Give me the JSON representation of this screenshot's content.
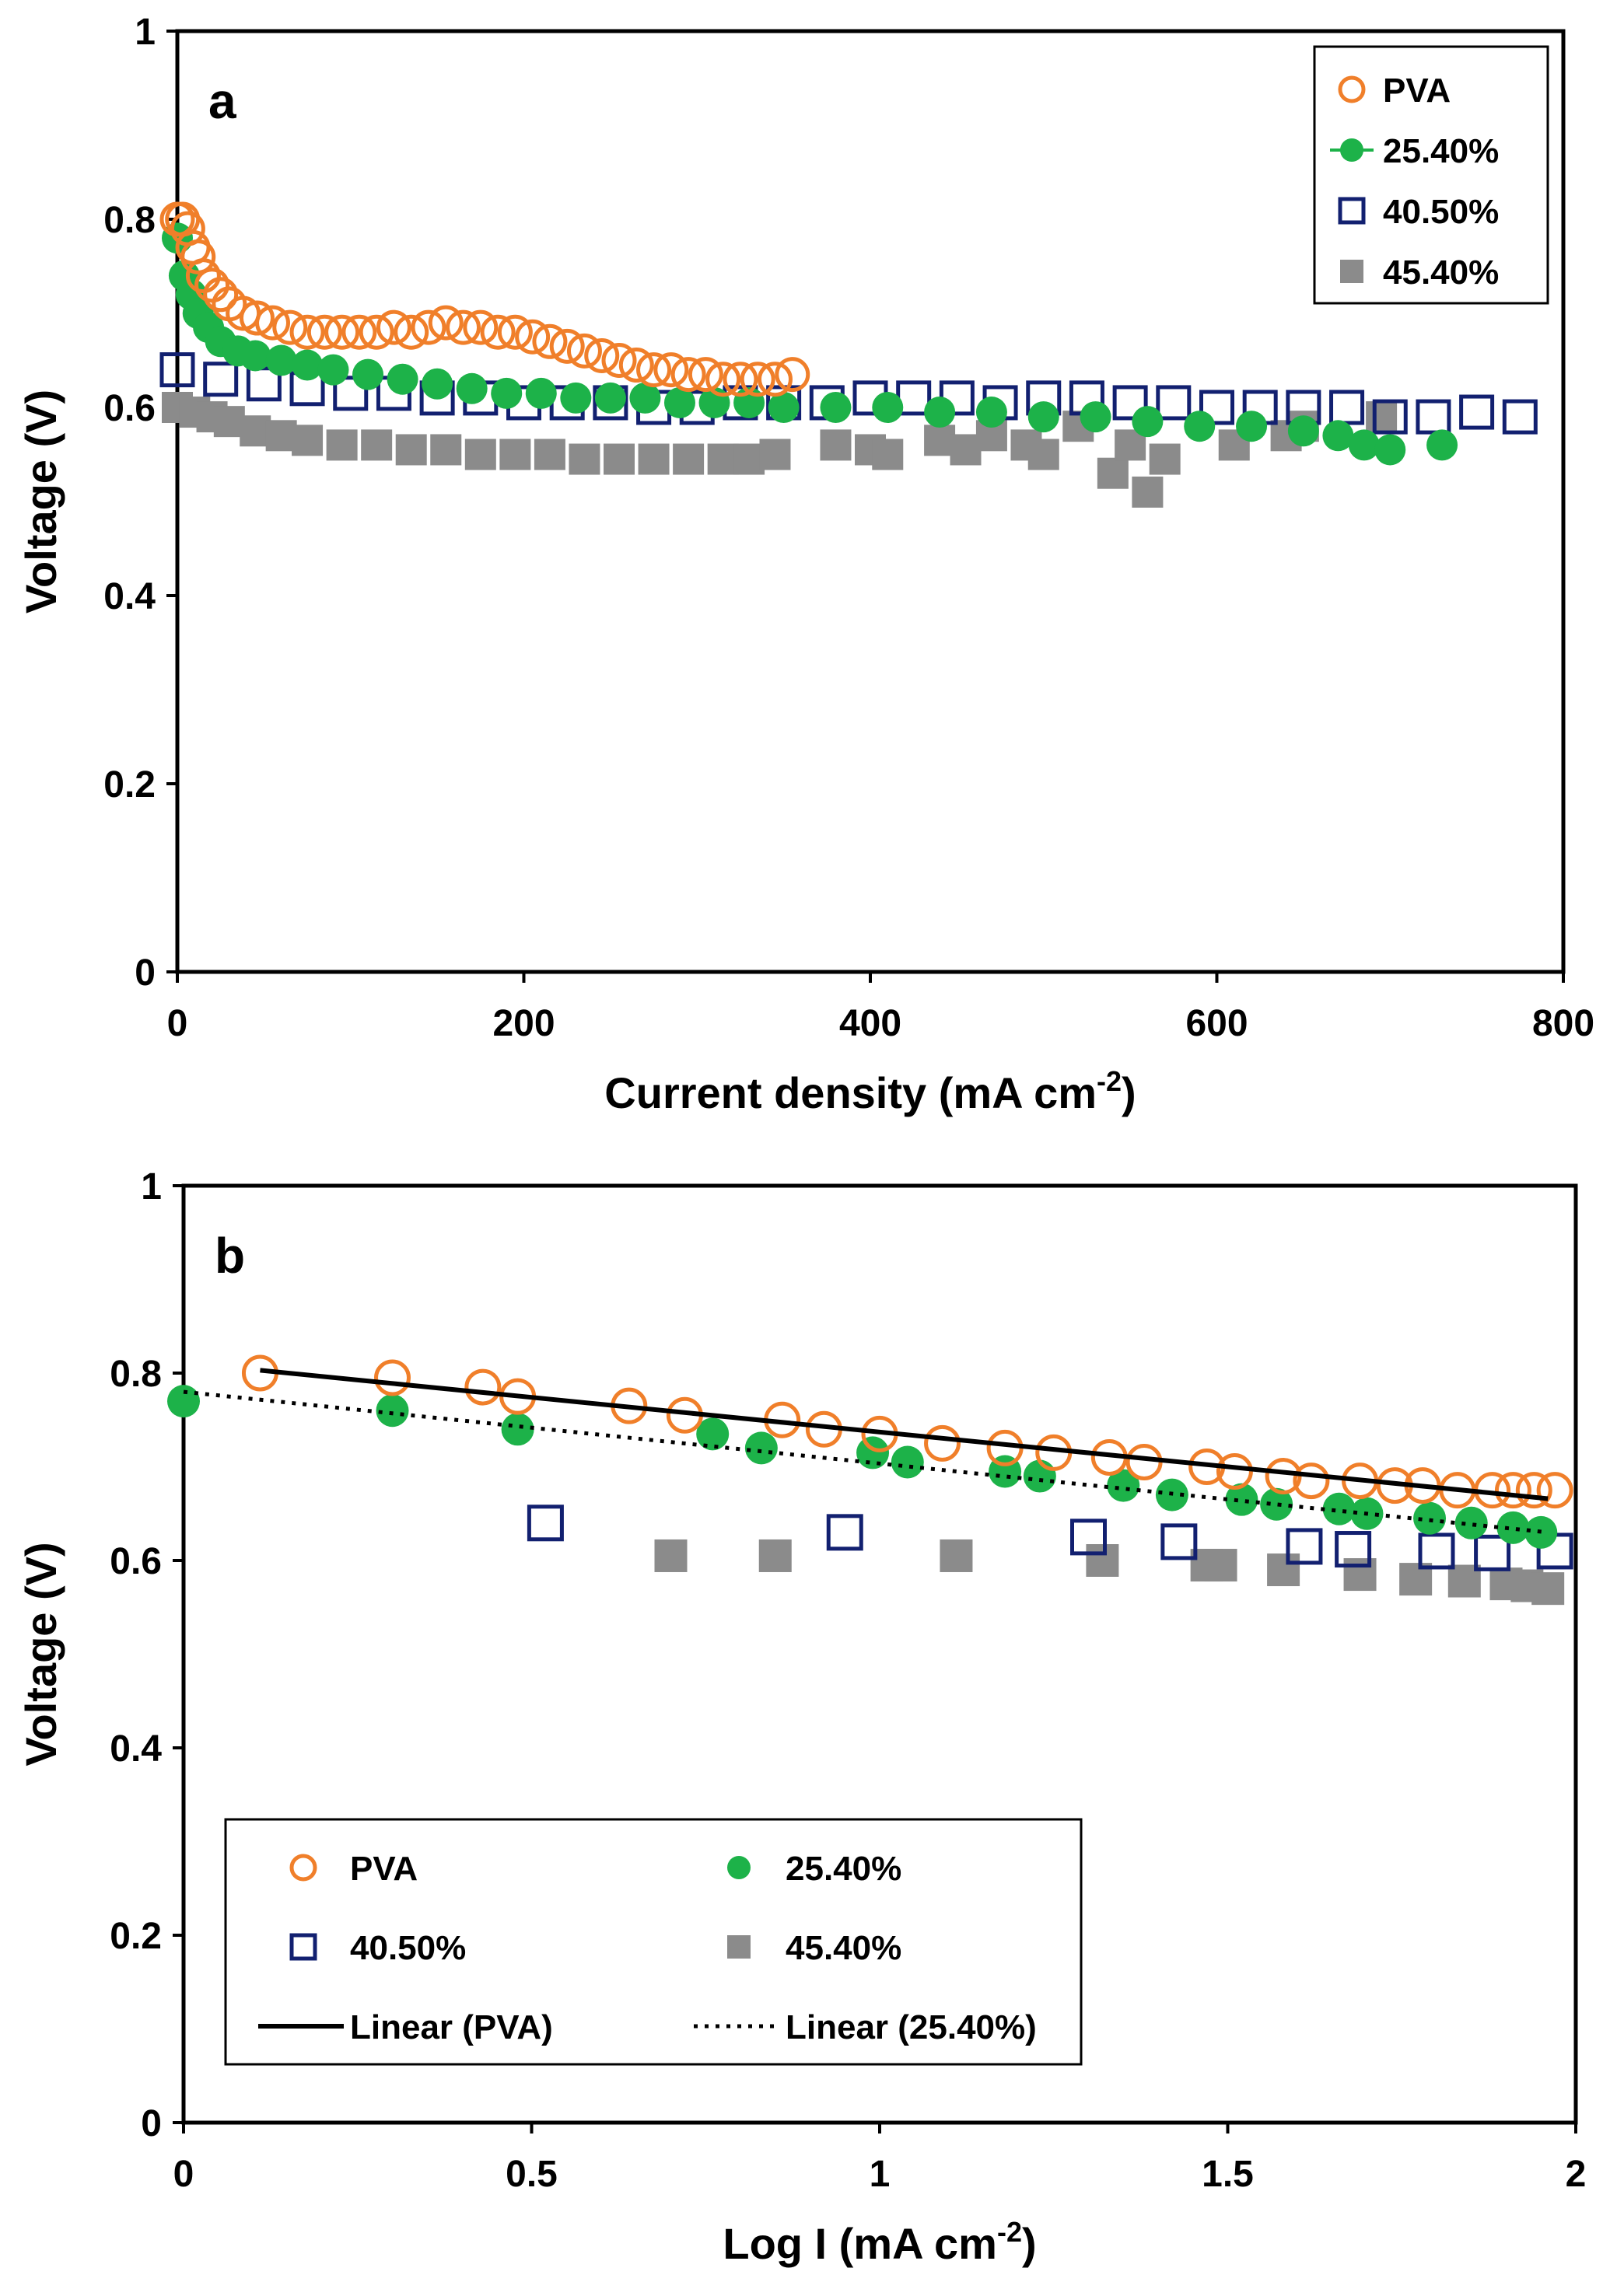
{
  "colors": {
    "pva": "#f07f2a",
    "s2540": "#1db249",
    "s4050": "#122070",
    "s4540": "#8b8b8b",
    "fit": "#000000"
  },
  "chart_data": [
    {
      "type": "scatter",
      "panel_label": "a",
      "xlabel": "Current density (mA cm",
      "xlabel_sup": "-2",
      "xlabel_end": ")",
      "ylabel": "Voltage (V)",
      "xlim": [
        0,
        800
      ],
      "ylim": [
        0,
        1
      ],
      "xticks": [
        "0",
        "200",
        "400",
        "600",
        "800"
      ],
      "yticks": [
        "0",
        "0.2",
        "0.4",
        "0.6",
        "0.8",
        "1"
      ],
      "legend_position": "top-right",
      "series": [
        {
          "name": "PVA",
          "marker": "open-circle",
          "color": "pva",
          "x": [
            0,
            3,
            6,
            9,
            12,
            15,
            20,
            25,
            30,
            38,
            46,
            55,
            65,
            75,
            85,
            95,
            105,
            115,
            125,
            135,
            145,
            155,
            165,
            175,
            185,
            195,
            205,
            215,
            225,
            235,
            245,
            255,
            265,
            275,
            285,
            295,
            305,
            315,
            325,
            335,
            345,
            355
          ],
          "y": [
            0.8,
            0.8,
            0.79,
            0.77,
            0.76,
            0.74,
            0.73,
            0.72,
            0.71,
            0.7,
            0.695,
            0.69,
            0.685,
            0.68,
            0.68,
            0.68,
            0.68,
            0.68,
            0.685,
            0.68,
            0.685,
            0.69,
            0.685,
            0.685,
            0.68,
            0.68,
            0.675,
            0.67,
            0.665,
            0.66,
            0.655,
            0.65,
            0.645,
            0.64,
            0.64,
            0.635,
            0.635,
            0.63,
            0.63,
            0.63,
            0.63,
            0.635
          ]
        },
        {
          "name": "25.40%",
          "marker": "filled-circle",
          "color": "s2540",
          "x": [
            0,
            4,
            8,
            12,
            18,
            25,
            35,
            45,
            60,
            75,
            90,
            110,
            130,
            150,
            170,
            190,
            210,
            230,
            250,
            270,
            290,
            310,
            330,
            350,
            380,
            410,
            440,
            470,
            500,
            530,
            560,
            590,
            620,
            650,
            670,
            685,
            700,
            730
          ],
          "y": [
            0.78,
            0.74,
            0.72,
            0.7,
            0.685,
            0.67,
            0.66,
            0.655,
            0.65,
            0.645,
            0.64,
            0.635,
            0.63,
            0.625,
            0.62,
            0.615,
            0.615,
            0.61,
            0.61,
            0.61,
            0.605,
            0.605,
            0.605,
            0.6,
            0.6,
            0.6,
            0.595,
            0.595,
            0.59,
            0.59,
            0.585,
            0.58,
            0.58,
            0.575,
            0.57,
            0.56,
            0.555,
            0.56
          ]
        },
        {
          "name": "40.50%",
          "marker": "open-square",
          "color": "s4050",
          "x": [
            0,
            25,
            50,
            75,
            100,
            125,
            150,
            175,
            200,
            225,
            250,
            275,
            300,
            325,
            350,
            375,
            400,
            425,
            450,
            475,
            500,
            525,
            550,
            575,
            600,
            625,
            650,
            675,
            700,
            725,
            750,
            775
          ],
          "y": [
            0.64,
            0.63,
            0.625,
            0.62,
            0.615,
            0.615,
            0.61,
            0.61,
            0.605,
            0.605,
            0.605,
            0.6,
            0.6,
            0.605,
            0.605,
            0.605,
            0.61,
            0.61,
            0.61,
            0.605,
            0.61,
            0.61,
            0.605,
            0.605,
            0.6,
            0.6,
            0.6,
            0.6,
            0.59,
            0.59,
            0.595,
            0.59
          ]
        },
        {
          "name": "45.40%",
          "marker": "filled-square",
          "color": "s4540",
          "x": [
            0,
            10,
            20,
            30,
            45,
            60,
            75,
            95,
            115,
            135,
            155,
            175,
            195,
            215,
            235,
            255,
            275,
            295,
            315,
            330,
            345,
            380,
            400,
            410,
            440,
            455,
            470,
            490,
            500,
            520,
            540,
            550,
            560,
            570,
            610,
            640,
            650,
            695
          ],
          "y": [
            0.6,
            0.595,
            0.59,
            0.585,
            0.575,
            0.57,
            0.565,
            0.56,
            0.56,
            0.555,
            0.555,
            0.55,
            0.55,
            0.55,
            0.545,
            0.545,
            0.545,
            0.545,
            0.545,
            0.545,
            0.55,
            0.56,
            0.555,
            0.55,
            0.565,
            0.555,
            0.57,
            0.56,
            0.55,
            0.58,
            0.53,
            0.56,
            0.51,
            0.545,
            0.56,
            0.57,
            0.58,
            0.59
          ]
        }
      ]
    },
    {
      "type": "scatter",
      "panel_label": "b",
      "xlabel": "Log I (mA cm",
      "xlabel_sup": "-2",
      "xlabel_end": ")",
      "ylabel": "Voltage (V)",
      "xlim": [
        0,
        2
      ],
      "ylim": [
        0,
        1
      ],
      "xticks": [
        "0",
        "0.5",
        "1",
        "1.5",
        "2"
      ],
      "yticks": [
        "0",
        "0.2",
        "0.4",
        "0.6",
        "0.8",
        "1"
      ],
      "legend_position": "bottom-left",
      "series": [
        {
          "name": "PVA",
          "marker": "open-circle",
          "color": "pva",
          "x": [
            0.11,
            0.3,
            0.43,
            0.48,
            0.64,
            0.72,
            0.86,
            0.92,
            1.0,
            1.09,
            1.18,
            1.25,
            1.33,
            1.38,
            1.47,
            1.51,
            1.58,
            1.62,
            1.69,
            1.74,
            1.78,
            1.83,
            1.88,
            1.91,
            1.94,
            1.97
          ],
          "y": [
            0.8,
            0.795,
            0.785,
            0.775,
            0.765,
            0.755,
            0.75,
            0.74,
            0.735,
            0.725,
            0.72,
            0.715,
            0.71,
            0.705,
            0.7,
            0.695,
            0.69,
            0.685,
            0.685,
            0.68,
            0.68,
            0.675,
            0.675,
            0.675,
            0.675,
            0.675
          ]
        },
        {
          "name": "25.40%",
          "marker": "filled-circle",
          "color": "s2540",
          "x": [
            0.0,
            0.3,
            0.48,
            0.76,
            0.83,
            0.99,
            1.04,
            1.18,
            1.23,
            1.35,
            1.42,
            1.52,
            1.57,
            1.66,
            1.7,
            1.79,
            1.85,
            1.91,
            1.95
          ],
          "y": [
            0.77,
            0.76,
            0.74,
            0.735,
            0.72,
            0.715,
            0.705,
            0.695,
            0.69,
            0.68,
            0.67,
            0.665,
            0.66,
            0.655,
            0.65,
            0.645,
            0.64,
            0.635,
            0.63
          ]
        },
        {
          "name": "40.50%",
          "marker": "open-square",
          "color": "s4050",
          "x": [
            0.52,
            0.95,
            1.3,
            1.43,
            1.61,
            1.68,
            1.8,
            1.88,
            1.97
          ],
          "y": [
            0.64,
            0.63,
            0.625,
            0.62,
            0.615,
            0.612,
            0.61,
            0.608,
            0.61
          ]
        },
        {
          "name": "45.40%",
          "marker": "filled-square",
          "color": "s4540",
          "x": [
            0.7,
            0.85,
            1.11,
            1.32,
            1.47,
            1.49,
            1.58,
            1.69,
            1.77,
            1.84,
            1.9,
            1.93,
            1.96
          ],
          "y": [
            0.605,
            0.605,
            0.605,
            0.6,
            0.595,
            0.595,
            0.59,
            0.585,
            0.58,
            0.578,
            0.575,
            0.573,
            0.57
          ]
        },
        {
          "name": "Linear (PVA)",
          "marker": "solid-line",
          "color": "fit",
          "x": [
            0.11,
            1.96
          ],
          "y": [
            0.803,
            0.666
          ]
        },
        {
          "name": "Linear (25.40%)",
          "marker": "dotted-line",
          "color": "fit",
          "x": [
            0.0,
            1.96
          ],
          "y": [
            0.78,
            0.63
          ]
        }
      ]
    }
  ]
}
